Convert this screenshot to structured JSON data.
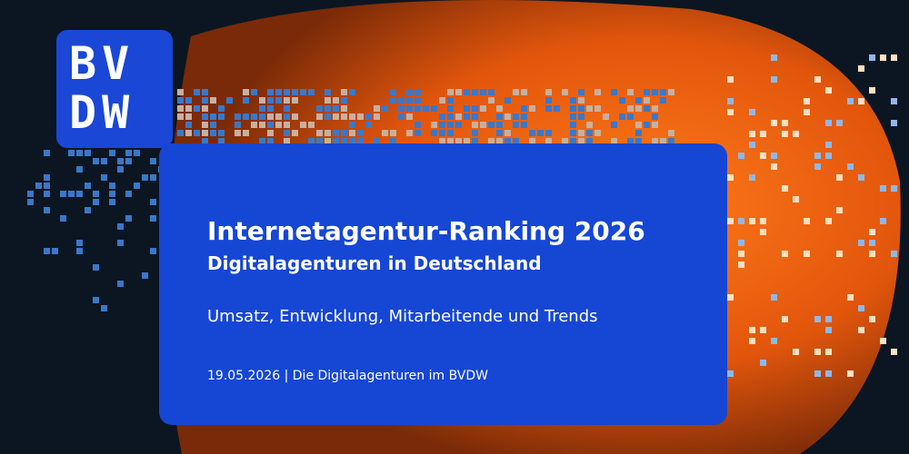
{
  "logo": {
    "top": "BV",
    "bottom": "DW"
  },
  "card": {
    "title": "Internetagentur-Ranking 2026",
    "subtitle": "Digitalagenturen in Deutschland",
    "tagline": "Umsatz, Entwicklung, Mitarbeitende und Trends",
    "footer": "19.05.2026 | Die Digitalagenturen im BVDW"
  }
}
